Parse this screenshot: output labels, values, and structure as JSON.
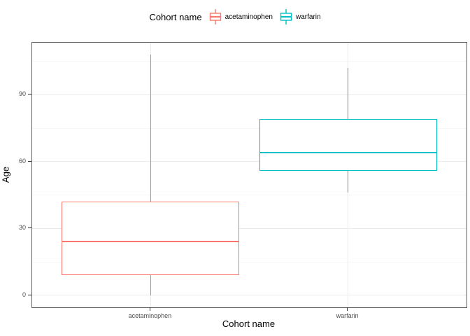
{
  "legend": {
    "title": "Cohort name",
    "items": [
      {
        "label": "acetaminophen",
        "color": "#F8766D"
      },
      {
        "label": "warfarin",
        "color": "#00BFC4"
      }
    ]
  },
  "axes": {
    "x_title": "Cohort name",
    "y_title": "Age"
  },
  "chart_data": {
    "type": "boxplot",
    "title": "",
    "xlabel": "Cohort name",
    "ylabel": "Age",
    "categories": [
      "acetaminophen",
      "warfarin"
    ],
    "series": [
      {
        "name": "acetaminophen",
        "color": "#F8766D",
        "min": 0,
        "q1": 9,
        "median": 24,
        "q3": 42,
        "max": 108
      },
      {
        "name": "warfarin",
        "color": "#00BFC4",
        "min": 46,
        "q1": 56,
        "median": 64,
        "q3": 79,
        "max": 102
      }
    ],
    "y_ticks": [
      0,
      30,
      60,
      90
    ],
    "y_minor_ticks": [
      15,
      45,
      75,
      105
    ],
    "ylim": [
      -5.4,
      113.4
    ],
    "grid": true,
    "legend_position": "top"
  },
  "colors": {
    "grid_major": "#ebebeb",
    "grid_minor": "#f7f7f7",
    "panel_border": "#5f5f5f",
    "tick_label": "#4d4d4d",
    "tick_mark": "#333333",
    "axis_title": "#000000"
  }
}
